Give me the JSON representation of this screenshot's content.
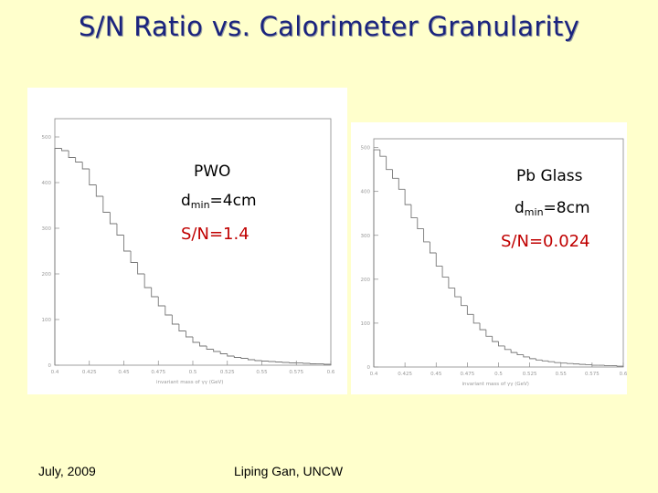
{
  "slide": {
    "title": "S/N Ratio vs. Calorimeter Granularity",
    "footer_date": "July, 2009",
    "footer_author": "Liping Gan, UNCW"
  },
  "chart_data": [
    {
      "type": "bar",
      "style": "step-histogram",
      "title": "",
      "xlabel": "invariant mass of γγ (GeV)",
      "ylabel": "",
      "xlim": [
        0.4,
        0.6
      ],
      "ylim": [
        0,
        540
      ],
      "x_ticks": [
        "0.4",
        "0.425",
        "0.45",
        "0.475",
        "0.5",
        "0.525",
        "0.55",
        "0.575",
        "0.6"
      ],
      "y_ticks": [
        "0",
        "100",
        "200",
        "300",
        "400",
        "500"
      ],
      "bin_width": 0.005,
      "x": [
        0.4,
        0.405,
        0.41,
        0.415,
        0.42,
        0.425,
        0.43,
        0.435,
        0.44,
        0.445,
        0.45,
        0.455,
        0.46,
        0.465,
        0.47,
        0.475,
        0.48,
        0.485,
        0.49,
        0.495,
        0.5,
        0.505,
        0.51,
        0.515,
        0.52,
        0.525,
        0.53,
        0.535,
        0.54,
        0.545,
        0.55,
        0.555,
        0.56,
        0.565,
        0.57,
        0.575,
        0.58,
        0.585,
        0.59,
        0.595
      ],
      "values": [
        475,
        470,
        455,
        445,
        430,
        395,
        370,
        335,
        310,
        285,
        250,
        225,
        200,
        170,
        150,
        130,
        110,
        90,
        75,
        62,
        50,
        42,
        35,
        30,
        25,
        20,
        17,
        15,
        12,
        10,
        9,
        8,
        7,
        6,
        5,
        5,
        4,
        3,
        3,
        2
      ],
      "annotations": {
        "material": "PWO",
        "dmin_prefix": "d",
        "dmin_sub": "min",
        "dmin_value": "=4cm",
        "sn": "S/N=1.4"
      }
    },
    {
      "type": "bar",
      "style": "step-histogram",
      "title": "",
      "xlabel": "invariant mass of γγ (GeV)",
      "ylabel": "",
      "xlim": [
        0.4,
        0.6
      ],
      "ylim": [
        0,
        520
      ],
      "x_ticks": [
        "0.4",
        "0.425",
        "0.45",
        "0.475",
        "0.5",
        "0.525",
        "0.55",
        "0.575",
        "0.6"
      ],
      "y_ticks": [
        "0",
        "100",
        "200",
        "300",
        "400",
        "500"
      ],
      "bin_width": 0.005,
      "x": [
        0.4,
        0.405,
        0.41,
        0.415,
        0.42,
        0.425,
        0.43,
        0.435,
        0.44,
        0.445,
        0.45,
        0.455,
        0.46,
        0.465,
        0.47,
        0.475,
        0.48,
        0.485,
        0.49,
        0.495,
        0.5,
        0.505,
        0.51,
        0.515,
        0.52,
        0.525,
        0.53,
        0.535,
        0.54,
        0.545,
        0.55,
        0.555,
        0.56,
        0.565,
        0.57,
        0.575,
        0.58,
        0.585,
        0.59,
        0.595
      ],
      "values": [
        495,
        480,
        450,
        430,
        405,
        370,
        340,
        315,
        285,
        260,
        230,
        205,
        180,
        160,
        140,
        120,
        100,
        85,
        70,
        58,
        48,
        40,
        33,
        28,
        23,
        19,
        16,
        14,
        12,
        10,
        9,
        8,
        7,
        6,
        5,
        4,
        4,
        3,
        3,
        2
      ],
      "annotations": {
        "material": "Pb Glass",
        "dmin_prefix": "d",
        "dmin_sub": "min",
        "dmin_value": "=8cm",
        "sn": "S/N=0.024"
      }
    }
  ]
}
